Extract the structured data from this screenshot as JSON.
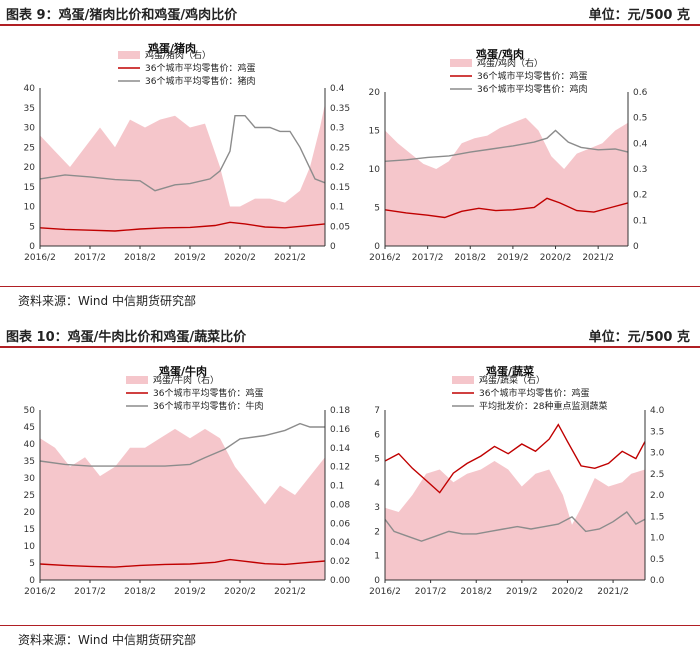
{
  "figure1": {
    "label": "图表 9：鸡蛋/猪肉比价和鸡蛋/鸡肉比价",
    "unit": "单位：元/500 克",
    "source": "资料来源：Wind  中信期货研究部"
  },
  "figure2": {
    "label": "图表 10：鸡蛋/牛肉比价和鸡蛋/蔬菜比价",
    "unit": "单位：元/500 克",
    "source": "资料来源：Wind  中信期货研究部"
  },
  "colors": {
    "ratio_fill": "#f5c6cb",
    "egg_line": "#c00000",
    "meat_line": "#8c8c8c",
    "accent": "#b01f24"
  },
  "chart_data": [
    {
      "type": "area",
      "title": "鸡蛋/猪肉",
      "x_ticks": [
        "2016/2",
        "2017/2",
        "2018/2",
        "2019/2",
        "2020/2",
        "2021/2"
      ],
      "x_range": [
        2016.0,
        2021.7
      ],
      "y_left": {
        "min": 0,
        "max": 40,
        "ticks": [
          0,
          5,
          10,
          15,
          20,
          25,
          30,
          35,
          40
        ]
      },
      "y_right": {
        "min": 0,
        "max": 0.4,
        "ticks": [
          0,
          0.05,
          0.1,
          0.15,
          0.2,
          0.25,
          0.3,
          0.35,
          0.4
        ],
        "tick_labels": [
          "0",
          "0.05",
          "0.1",
          "0.15",
          "0.2",
          "0.25",
          "0.3",
          "0.35",
          "0.4"
        ]
      },
      "series": [
        {
          "name": "鸡蛋/猪肉（右）",
          "axis": "right",
          "kind": "area",
          "x": [
            2016.0,
            2016.3,
            2016.6,
            2016.9,
            2017.2,
            2017.5,
            2017.8,
            2018.1,
            2018.4,
            2018.7,
            2019.0,
            2019.3,
            2019.6,
            2019.8,
            2020.0,
            2020.3,
            2020.6,
            2020.9,
            2021.2,
            2021.4,
            2021.6,
            2021.7
          ],
          "y": [
            0.28,
            0.24,
            0.2,
            0.25,
            0.3,
            0.25,
            0.32,
            0.3,
            0.32,
            0.33,
            0.3,
            0.31,
            0.2,
            0.1,
            0.1,
            0.12,
            0.12,
            0.11,
            0.14,
            0.2,
            0.3,
            0.36
          ]
        },
        {
          "name": "36个城市平均零售价：鸡蛋",
          "axis": "left",
          "kind": "line",
          "x": [
            2016.0,
            2016.5,
            2017.0,
            2017.5,
            2018.0,
            2018.5,
            2019.0,
            2019.5,
            2019.8,
            2020.1,
            2020.5,
            2020.9,
            2021.3,
            2021.7
          ],
          "y": [
            4.6,
            4.2,
            4.0,
            3.8,
            4.3,
            4.6,
            4.7,
            5.2,
            6.0,
            5.6,
            4.8,
            4.6,
            5.1,
            5.6
          ]
        },
        {
          "name": "36个城市平均零售价：猪肉",
          "axis": "left",
          "kind": "line",
          "x": [
            2016.0,
            2016.5,
            2017.0,
            2017.5,
            2018.0,
            2018.3,
            2018.7,
            2019.0,
            2019.4,
            2019.6,
            2019.8,
            2019.9,
            2020.1,
            2020.3,
            2020.6,
            2020.8,
            2021.0,
            2021.2,
            2021.5,
            2021.7
          ],
          "y": [
            17,
            18,
            17.5,
            16.8,
            16.5,
            14,
            15.5,
            15.8,
            17,
            19,
            24,
            33,
            33,
            30,
            30,
            29,
            29,
            25,
            17,
            16
          ]
        }
      ]
    },
    {
      "type": "area",
      "title": "鸡蛋/鸡肉",
      "x_ticks": [
        "2016/2",
        "2017/2",
        "2018/2",
        "2019/2",
        "2020/2",
        "2021/2"
      ],
      "x_range": [
        2016.0,
        2021.7
      ],
      "y_left": {
        "min": 0,
        "max": 20,
        "ticks": [
          0,
          5,
          10,
          15,
          20
        ]
      },
      "y_right": {
        "min": 0,
        "max": 0.6,
        "ticks": [
          0,
          0.1,
          0.2,
          0.3,
          0.4,
          0.5,
          0.6
        ],
        "tick_labels": [
          "0",
          "0.1",
          "0.2",
          "0.3",
          "0.4",
          "0.5",
          "0.6"
        ]
      },
      "series": [
        {
          "name": "鸡蛋/鸡肉（右）",
          "axis": "right",
          "kind": "area",
          "x": [
            2016.0,
            2016.3,
            2016.6,
            2016.9,
            2017.2,
            2017.5,
            2017.8,
            2018.1,
            2018.4,
            2018.7,
            2019.0,
            2019.3,
            2019.6,
            2019.9,
            2020.2,
            2020.5,
            2020.8,
            2021.1,
            2021.4,
            2021.7
          ],
          "y": [
            0.45,
            0.4,
            0.36,
            0.32,
            0.3,
            0.33,
            0.4,
            0.42,
            0.43,
            0.46,
            0.48,
            0.5,
            0.45,
            0.35,
            0.3,
            0.36,
            0.38,
            0.4,
            0.45,
            0.48
          ]
        },
        {
          "name": "36个城市平均零售价：鸡蛋",
          "axis": "left",
          "kind": "line",
          "x": [
            2016.0,
            2016.5,
            2017.0,
            2017.4,
            2017.8,
            2018.2,
            2018.6,
            2019.0,
            2019.5,
            2019.8,
            2020.1,
            2020.5,
            2020.9,
            2021.3,
            2021.7
          ],
          "y": [
            4.7,
            4.3,
            4.0,
            3.7,
            4.5,
            4.9,
            4.6,
            4.7,
            5.0,
            6.2,
            5.6,
            4.6,
            4.4,
            5.0,
            5.6
          ]
        },
        {
          "name": "36个城市平均零售价：鸡肉",
          "axis": "left",
          "kind": "line",
          "x": [
            2016.0,
            2016.5,
            2017.0,
            2017.5,
            2018.0,
            2018.5,
            2019.0,
            2019.5,
            2019.8,
            2020.0,
            2020.3,
            2020.6,
            2021.0,
            2021.4,
            2021.7
          ],
          "y": [
            11,
            11.2,
            11.5,
            11.7,
            12.2,
            12.6,
            13.0,
            13.5,
            14.0,
            15.0,
            13.5,
            12.8,
            12.5,
            12.6,
            12.2
          ]
        }
      ]
    },
    {
      "type": "area",
      "title": "鸡蛋/牛肉",
      "x_ticks": [
        "2016/2",
        "2017/2",
        "2018/2",
        "2019/2",
        "2020/2",
        "2021/2"
      ],
      "x_range": [
        2016.0,
        2021.7
      ],
      "y_left": {
        "min": 0,
        "max": 50,
        "ticks": [
          0,
          5,
          10,
          15,
          20,
          25,
          30,
          35,
          40,
          45,
          50
        ]
      },
      "y_right": {
        "min": 0,
        "max": 0.18,
        "ticks": [
          0,
          0.02,
          0.04,
          0.06,
          0.08,
          0.1,
          0.12,
          0.14,
          0.16,
          0.18
        ],
        "tick_labels": [
          "0.00",
          "0.02",
          "0.04",
          "0.06",
          "0.08",
          "0.1",
          "0.12",
          "0.14",
          "0.16",
          "0.18"
        ]
      },
      "series": [
        {
          "name": "鸡蛋/牛肉（右）",
          "axis": "right",
          "kind": "area",
          "x": [
            2016.0,
            2016.3,
            2016.6,
            2016.9,
            2017.2,
            2017.5,
            2017.8,
            2018.1,
            2018.4,
            2018.7,
            2019.0,
            2019.3,
            2019.6,
            2019.9,
            2020.2,
            2020.5,
            2020.8,
            2021.1,
            2021.4,
            2021.7
          ],
          "y": [
            0.15,
            0.14,
            0.12,
            0.13,
            0.11,
            0.12,
            0.14,
            0.14,
            0.15,
            0.16,
            0.15,
            0.16,
            0.15,
            0.12,
            0.1,
            0.08,
            0.1,
            0.09,
            0.11,
            0.13
          ]
        },
        {
          "name": "36个城市平均零售价：鸡蛋",
          "axis": "left",
          "kind": "line",
          "x": [
            2016.0,
            2016.5,
            2017.0,
            2017.5,
            2018.0,
            2018.5,
            2019.0,
            2019.5,
            2019.8,
            2020.1,
            2020.5,
            2020.9,
            2021.3,
            2021.7
          ],
          "y": [
            4.7,
            4.3,
            4.0,
            3.8,
            4.3,
            4.6,
            4.7,
            5.2,
            6.0,
            5.5,
            4.8,
            4.6,
            5.1,
            5.6
          ]
        },
        {
          "name": "36个城市平均零售价：牛肉",
          "axis": "left",
          "kind": "line",
          "x": [
            2016.0,
            2016.5,
            2017.0,
            2017.5,
            2018.0,
            2018.5,
            2019.0,
            2019.3,
            2019.7,
            2020.0,
            2020.5,
            2020.9,
            2021.2,
            2021.4,
            2021.7
          ],
          "y": [
            35,
            34,
            33.5,
            33.5,
            33.5,
            33.5,
            34,
            36,
            38.5,
            41.5,
            42.5,
            44,
            46,
            45,
            45
          ]
        }
      ]
    },
    {
      "type": "area",
      "title": "鸡蛋/蔬菜",
      "x_ticks": [
        "2016/2",
        "2017/2",
        "2018/2",
        "2019/2",
        "2020/2",
        "2021/2"
      ],
      "x_range": [
        2016.0,
        2021.7
      ],
      "y_left": {
        "min": 0,
        "max": 7,
        "ticks": [
          0,
          1,
          2,
          3,
          4,
          5,
          6,
          7
        ]
      },
      "y_right": {
        "min": 0,
        "max": 4,
        "ticks": [
          0,
          0.5,
          1,
          1.5,
          2,
          2.5,
          3,
          3.5,
          4
        ],
        "tick_labels": [
          "0.0",
          "0.5",
          "1.0",
          "1.5",
          "2.0",
          "2.5",
          "3.0",
          "3.5",
          "4.0"
        ]
      },
      "series": [
        {
          "name": "鸡蛋/蔬菜（右）",
          "axis": "right",
          "kind": "area",
          "x": [
            2016.0,
            2016.3,
            2016.6,
            2016.9,
            2017.2,
            2017.5,
            2017.8,
            2018.1,
            2018.4,
            2018.7,
            2019.0,
            2019.3,
            2019.6,
            2019.9,
            2020.1,
            2020.3,
            2020.6,
            2020.9,
            2021.2,
            2021.4,
            2021.7
          ],
          "y": [
            1.7,
            1.6,
            2.0,
            2.5,
            2.6,
            2.3,
            2.5,
            2.6,
            2.8,
            2.6,
            2.2,
            2.5,
            2.6,
            2.0,
            1.3,
            1.7,
            2.4,
            2.2,
            2.3,
            2.5,
            2.6
          ]
        },
        {
          "name": "36个城市平均零售价：鸡蛋",
          "axis": "left",
          "kind": "line",
          "x": [
            2016.0,
            2016.3,
            2016.6,
            2016.9,
            2017.2,
            2017.5,
            2017.8,
            2018.1,
            2018.4,
            2018.7,
            2019.0,
            2019.3,
            2019.6,
            2019.8,
            2020.0,
            2020.3,
            2020.6,
            2020.9,
            2021.2,
            2021.5,
            2021.7
          ],
          "y": [
            4.9,
            5.2,
            4.6,
            4.1,
            3.6,
            4.4,
            4.8,
            5.1,
            5.5,
            5.2,
            5.6,
            5.3,
            5.8,
            6.4,
            5.7,
            4.7,
            4.6,
            4.8,
            5.3,
            5.0,
            5.7
          ]
        },
        {
          "name": "平均批发价：28种重点监测蔬菜",
          "axis": "left",
          "kind": "line",
          "x": [
            2016.0,
            2016.2,
            2016.5,
            2016.8,
            2017.1,
            2017.4,
            2017.7,
            2018.0,
            2018.3,
            2018.6,
            2018.9,
            2019.2,
            2019.5,
            2019.8,
            2020.1,
            2020.4,
            2020.7,
            2021.0,
            2021.3,
            2021.5,
            2021.7
          ],
          "y": [
            2.5,
            2.0,
            1.8,
            1.6,
            1.8,
            2.0,
            1.9,
            1.9,
            2.0,
            2.1,
            2.2,
            2.1,
            2.2,
            2.3,
            2.6,
            2.0,
            2.1,
            2.4,
            2.8,
            2.3,
            2.5
          ]
        }
      ]
    }
  ]
}
